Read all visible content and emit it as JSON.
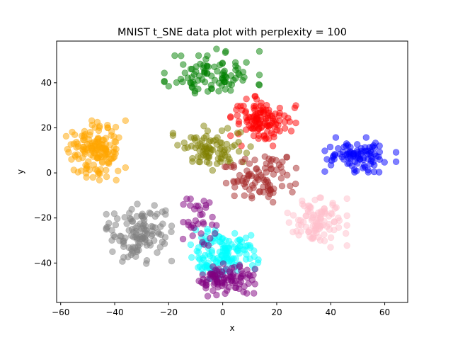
{
  "chart_data": {
    "type": "scatter",
    "title": "MNIST t_SNE data plot with perplexity = 100",
    "xlabel": "x",
    "ylabel": "y",
    "xlim": [
      -61.5,
      68.5
    ],
    "ylim": [
      -57.5,
      58.5
    ],
    "xticks": [
      -60,
      -40,
      -20,
      0,
      20,
      40,
      60
    ],
    "yticks": [
      -40,
      -20,
      0,
      20,
      40
    ],
    "grid": false,
    "legend": "none",
    "point_alpha": 0.5,
    "clusters": [
      {
        "color": "#008000",
        "center": [
          -4,
          44
        ],
        "spread": [
          8,
          5
        ],
        "count": 95,
        "seed": 11
      },
      {
        "color": "#ff0000",
        "center": [
          15,
          23
        ],
        "spread": [
          5.5,
          5
        ],
        "count": 120,
        "seed": 12
      },
      {
        "color": "#ffa500",
        "center": [
          -47,
          10
        ],
        "spread": [
          5,
          6
        ],
        "count": 150,
        "seed": 13
      },
      {
        "color": "#808000",
        "center": [
          -3,
          11
        ],
        "spread": [
          7,
          4.5
        ],
        "count": 85,
        "seed": 14
      },
      {
        "color": "#0000ff",
        "center": [
          51,
          8
        ],
        "spread": [
          6,
          3.5
        ],
        "count": 95,
        "seed": 15
      },
      {
        "color": "#a52a2a",
        "center": [
          14,
          -2
        ],
        "spread": [
          6,
          5
        ],
        "count": 90,
        "seed": 16
      },
      {
        "color": "#ffc0cb",
        "center": [
          35,
          -22
        ],
        "spread": [
          5,
          5
        ],
        "count": 100,
        "seed": 17
      },
      {
        "color": "#808080",
        "center": [
          -31,
          -27
        ],
        "spread": [
          5.5,
          6
        ],
        "count": 120,
        "seed": 18
      },
      {
        "color": "#00ffff",
        "center": [
          0,
          -36
        ],
        "spread": [
          6,
          5
        ],
        "count": 140,
        "seed": 19
      },
      {
        "color": "#800080",
        "center": [
          1,
          -47
        ],
        "spread": [
          5,
          3.5
        ],
        "count": 95,
        "seed": 20
      },
      {
        "color": "#800080",
        "center": [
          -8,
          -22
        ],
        "spread": [
          4,
          6
        ],
        "count": 35,
        "seed": 21
      }
    ]
  }
}
